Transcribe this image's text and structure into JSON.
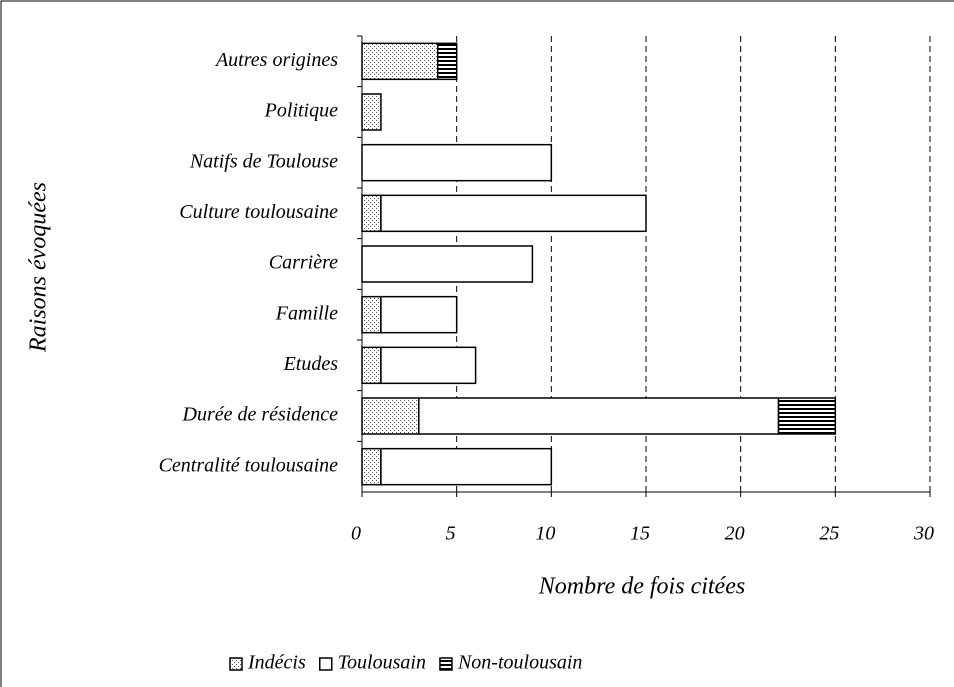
{
  "chart_data": {
    "type": "stacked_barh",
    "x_label": "Nombre de fois citées",
    "y_label": "Raisons évoquées",
    "categories": [
      "Autres origines",
      "Politique",
      "Natifs de Toulouse",
      "Culture toulousaine",
      "Carrière",
      "Famille",
      "Etudes",
      "Durée de résidence",
      "Centralité toulousaine"
    ],
    "series": [
      {
        "name": "Indécis",
        "color": "#000000",
        "pattern": "dots",
        "values": [
          4,
          1,
          0,
          1,
          0,
          1,
          1,
          3,
          1
        ]
      },
      {
        "name": "Toulousain",
        "color": "#000000",
        "pattern": "none",
        "values": [
          0,
          0,
          10,
          14,
          9,
          4,
          5,
          19,
          9
        ]
      },
      {
        "name": "Non-toulousain",
        "color": "#000000",
        "pattern": "stripes",
        "values": [
          1,
          0,
          0,
          0,
          0,
          0,
          0,
          3,
          0
        ]
      }
    ],
    "xlim": [
      0,
      30
    ],
    "xticks": [
      0,
      5,
      10,
      15,
      20,
      25,
      30
    ],
    "grid": true,
    "legend": "bottom"
  }
}
